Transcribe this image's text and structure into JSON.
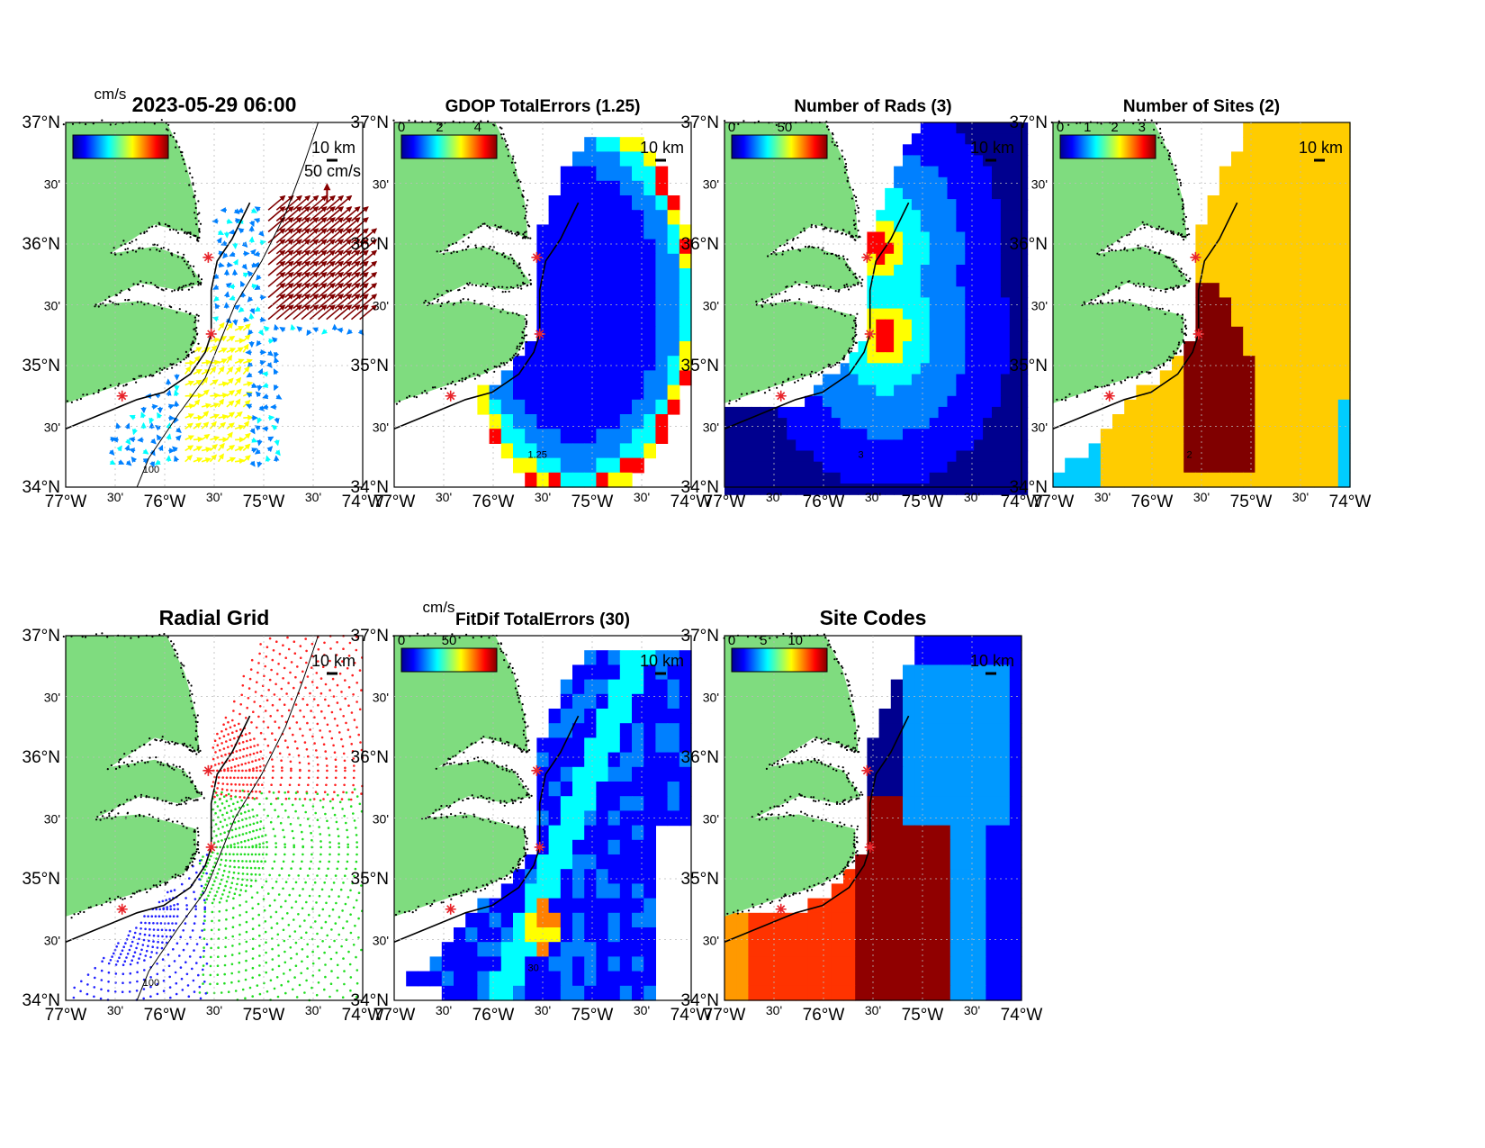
{
  "figure_time": "2023-05-29 06:00",
  "lon_ticks": [
    "77°W",
    "30'",
    "76°W",
    "30'",
    "75°W",
    "30'",
    "74°W"
  ],
  "lat_ticks": [
    "37°N",
    "30'",
    "36°N",
    "30'",
    "35°N",
    "30'",
    "34°N"
  ],
  "scale_bar_label": "10 km",
  "vector_scale_label": "50 cm/s",
  "depth_contour_label": "100",
  "colors": {
    "land": "#7fdc7f",
    "coast_dots": "#000000",
    "site_marker": "#e8242a",
    "ocean": "#ffffff",
    "jet_colormap": [
      "#00008f",
      "#0000ff",
      "#0080ff",
      "#00ffff",
      "#80ff80",
      "#ffff00",
      "#ff8000",
      "#ff0000",
      "#800000"
    ]
  },
  "panels": [
    {
      "id": "totals",
      "title": "2023-05-29 06:00",
      "units": "cm/s",
      "colorbar_ticks": [],
      "type": "vectors"
    },
    {
      "id": "gdop",
      "title": "GDOP TotalErrors (1.25)",
      "units": "",
      "colorbar_ticks": [
        "0",
        "2",
        "4"
      ],
      "contour_label": "1.25",
      "type": "grid"
    },
    {
      "id": "nrads",
      "title": "Number of Rads (3)",
      "units": "",
      "colorbar_ticks": [
        "0",
        "50"
      ],
      "contour_label": "3",
      "type": "grid"
    },
    {
      "id": "nsites",
      "title": "Number of Sites (2)",
      "units": "",
      "colorbar_ticks": [
        "0",
        "1",
        "2",
        "3"
      ],
      "contour_label": "2",
      "type": "grid"
    },
    {
      "id": "radgrid",
      "title": "Radial Grid",
      "units": "",
      "colorbar_ticks": [],
      "type": "radial"
    },
    {
      "id": "fitdif",
      "title": "FitDif TotalErrors (30)",
      "units": "cm/s",
      "colorbar_ticks": [
        "0",
        "50"
      ],
      "contour_label": "30",
      "type": "grid"
    },
    {
      "id": "sitecodes",
      "title": "Site Codes",
      "units": "",
      "colorbar_ticks": [
        "0",
        "5",
        "10"
      ],
      "type": "grid"
    }
  ]
}
